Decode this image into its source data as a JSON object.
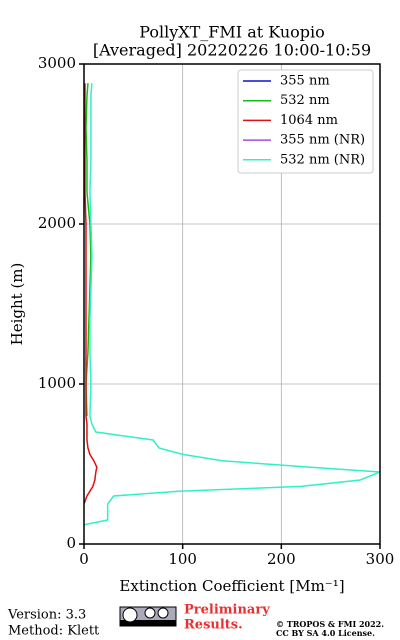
{
  "chart_data": {
    "type": "line",
    "title": "PollyXT_FMI at Kuopio",
    "subtitle": "[Averaged] 20220226 10:00-10:59",
    "x_label": "Extinction Coefficient [Mm⁻¹]",
    "y_label": "Height (m)",
    "xlim": [
      0,
      300
    ],
    "xticks": [
      0,
      100,
      200,
      300
    ],
    "ylim": [
      0,
      3000
    ],
    "yticks": [
      0,
      1000,
      2000,
      3000
    ],
    "grid": true,
    "legend": "upper right",
    "heights": [
      120,
      150,
      200,
      250,
      300,
      330,
      360,
      400,
      450,
      480,
      520,
      560,
      600,
      650,
      700,
      750,
      800,
      1000,
      1200,
      1400,
      1600,
      1800,
      2000,
      2200,
      2400,
      2600,
      2800,
      2880
    ],
    "series": [
      {
        "name": "355 nm",
        "color": "#1010d0",
        "values": [
          null,
          null,
          null,
          null,
          null,
          null,
          null,
          null,
          null,
          null,
          null,
          null,
          null,
          null,
          null,
          null,
          null,
          null,
          null,
          null,
          null,
          null,
          null,
          null,
          null,
          null,
          null,
          null
        ]
      },
      {
        "name": "532 nm",
        "color": "#10c010",
        "values": [
          null,
          null,
          null,
          null,
          null,
          null,
          null,
          null,
          null,
          null,
          null,
          null,
          null,
          null,
          null,
          null,
          3,
          2,
          4,
          5,
          6,
          7,
          6,
          3,
          3,
          2,
          3,
          4
        ]
      },
      {
        "name": "1064 nm",
        "color": "#e01010",
        "values": [
          null,
          null,
          null,
          0,
          3,
          6,
          9,
          11,
          12,
          13,
          10,
          6,
          4,
          3,
          3,
          3,
          2,
          2,
          2,
          2,
          2,
          2,
          2,
          1,
          1,
          1,
          1,
          1
        ]
      },
      {
        "name": "355 nm (NR)",
        "color": "#a050e0",
        "values": [
          null,
          null,
          null,
          null,
          null,
          null,
          null,
          null,
          null,
          null,
          null,
          null,
          null,
          null,
          null,
          null,
          null,
          null,
          null,
          null,
          null,
          null,
          null,
          null,
          null,
          null,
          null,
          null
        ]
      },
      {
        "name": "532 nm (NR)",
        "color": "#30f0c8",
        "values": [
          0,
          24,
          24,
          24,
          30,
          96,
          220,
          280,
          300,
          230,
          140,
          100,
          76,
          70,
          12,
          8,
          6,
          7,
          6,
          6,
          7,
          8,
          7,
          6,
          7,
          7,
          7,
          8
        ]
      }
    ],
    "footer": {
      "version": "Version: 3.3",
      "method": "Method: Klett",
      "notice_line1": "Preliminary",
      "notice_line2": "Results.",
      "copyright": "© TROPOS & FMI 2022.",
      "license": "CC BY SA 4.0 License."
    }
  }
}
